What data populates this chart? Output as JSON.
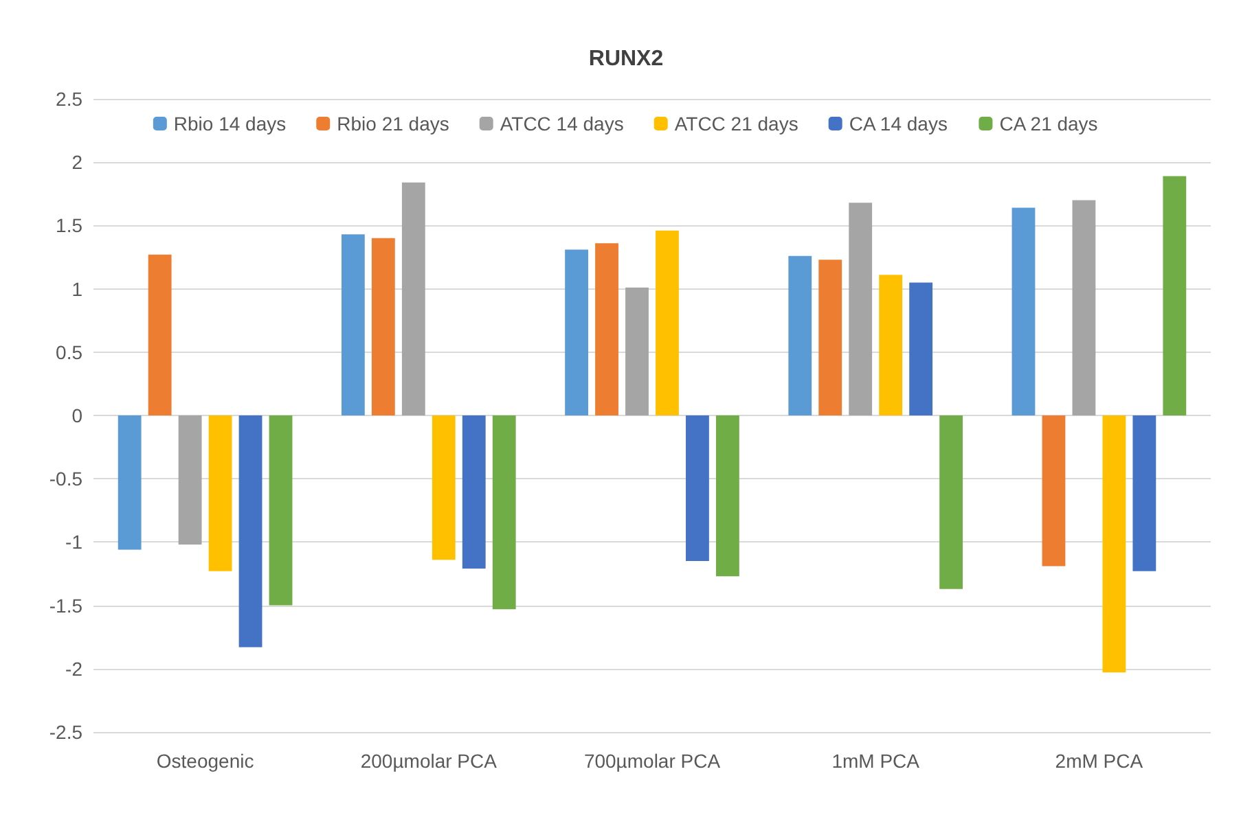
{
  "chart_data": {
    "type": "bar",
    "title": "RUNX2",
    "categories": [
      "Osteogenic",
      "200µmolar PCA",
      "700µmolar PCA",
      "1mM PCA",
      "2mM PCA"
    ],
    "series": [
      {
        "name": "Rbio 14 days",
        "color": "#5b9bd5",
        "values": [
          -1.06,
          1.43,
          1.31,
          1.26,
          1.64
        ]
      },
      {
        "name": "Rbio 21 days",
        "color": "#ed7d31",
        "values": [
          1.27,
          1.4,
          1.36,
          1.23,
          -1.19
        ]
      },
      {
        "name": "ATCC 14 days",
        "color": "#a5a5a5",
        "values": [
          -1.02,
          1.84,
          1.01,
          1.68,
          1.7
        ]
      },
      {
        "name": "ATCC 21 days",
        "color": "#ffc000",
        "values": [
          -1.23,
          -1.14,
          1.46,
          1.11,
          -2.03
        ]
      },
      {
        "name": "CA 14 days",
        "color": "#4472c4",
        "values": [
          -1.83,
          -1.21,
          -1.15,
          1.05,
          -1.23
        ]
      },
      {
        "name": "CA 21 days",
        "color": "#70ad47",
        "values": [
          -1.5,
          -1.53,
          -1.27,
          -1.37,
          1.89
        ]
      }
    ],
    "ylim": [
      -2.5,
      2.5
    ],
    "yticks": [
      -2.5,
      -2,
      -1.5,
      -1,
      -0.5,
      0,
      0.5,
      1,
      1.5,
      2,
      2.5
    ],
    "grid": "y",
    "legend": "top"
  }
}
